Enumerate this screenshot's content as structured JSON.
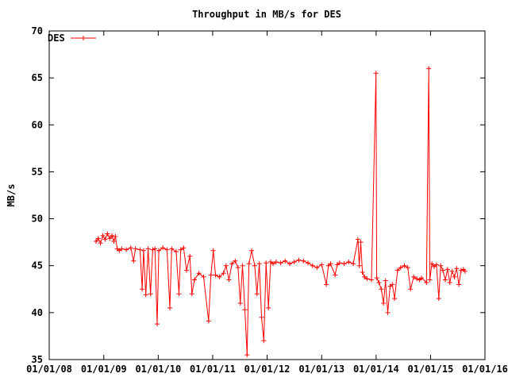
{
  "chart_data": {
    "type": "line",
    "title": "Throughput in MB/s for DES",
    "xlabel": "",
    "ylabel": "MB/s",
    "x_tick_labels": [
      "01/01/08",
      "01/01/09",
      "01/01/10",
      "01/01/11",
      "01/01/12",
      "01/01/13",
      "01/01/14",
      "01/01/15",
      "01/01/16"
    ],
    "y_ticks": [
      35,
      40,
      45,
      50,
      55,
      60,
      65,
      70
    ],
    "xlim": [
      "2008-01-01",
      "2016-01-01"
    ],
    "ylim": [
      35,
      70
    ],
    "grid": false,
    "legend_position": "top-left",
    "colors": {
      "series": "#ff0000",
      "axes": "#000000",
      "background": "#ffffff"
    },
    "series": [
      {
        "name": "DES",
        "marker": "plus",
        "points": [
          [
            "2008-11-10",
            47.6
          ],
          [
            "2008-11-25",
            47.9
          ],
          [
            "2008-12-10",
            47.4
          ],
          [
            "2008-12-25",
            48.2
          ],
          [
            "2009-01-10",
            47.8
          ],
          [
            "2009-01-25",
            48.4
          ],
          [
            "2009-02-10",
            47.9
          ],
          [
            "2009-02-25",
            48.2
          ],
          [
            "2009-03-10",
            47.6
          ],
          [
            "2009-03-20",
            48.1
          ],
          [
            "2009-04-01",
            46.8
          ],
          [
            "2009-04-15",
            46.6
          ],
          [
            "2009-05-01",
            46.8
          ],
          [
            "2009-06-01",
            46.7
          ],
          [
            "2009-07-01",
            46.9
          ],
          [
            "2009-07-20",
            45.5
          ],
          [
            "2009-08-01",
            46.8
          ],
          [
            "2009-09-01",
            46.7
          ],
          [
            "2009-09-15",
            42.5
          ],
          [
            "2009-09-25",
            46.6
          ],
          [
            "2009-10-10",
            41.9
          ],
          [
            "2009-10-25",
            46.8
          ],
          [
            "2009-11-10",
            42.0
          ],
          [
            "2009-11-25",
            46.7
          ],
          [
            "2009-12-10",
            46.8
          ],
          [
            "2009-12-25",
            38.8
          ],
          [
            "2010-01-05",
            46.6
          ],
          [
            "2010-02-01",
            46.9
          ],
          [
            "2010-03-01",
            46.7
          ],
          [
            "2010-03-20",
            40.5
          ],
          [
            "2010-04-01",
            46.8
          ],
          [
            "2010-05-01",
            46.5
          ],
          [
            "2010-05-20",
            42.0
          ],
          [
            "2010-06-01",
            46.7
          ],
          [
            "2010-06-20",
            46.9
          ],
          [
            "2010-07-10",
            44.5
          ],
          [
            "2010-08-01",
            46.0
          ],
          [
            "2010-08-15",
            42.0
          ],
          [
            "2010-09-01",
            43.5
          ],
          [
            "2010-10-01",
            44.2
          ],
          [
            "2010-11-01",
            43.8
          ],
          [
            "2010-12-05",
            39.1
          ],
          [
            "2010-12-20",
            44.0
          ],
          [
            "2011-01-05",
            46.6
          ],
          [
            "2011-01-20",
            44.0
          ],
          [
            "2011-02-15",
            43.8
          ],
          [
            "2011-03-15",
            44.2
          ],
          [
            "2011-04-01",
            45.0
          ],
          [
            "2011-04-20",
            43.5
          ],
          [
            "2011-05-10",
            45.2
          ],
          [
            "2011-06-01",
            45.5
          ],
          [
            "2011-06-20",
            44.8
          ],
          [
            "2011-07-05",
            41.0
          ],
          [
            "2011-07-20",
            45.0
          ],
          [
            "2011-08-05",
            40.3
          ],
          [
            "2011-08-20",
            35.5
          ],
          [
            "2011-09-01",
            45.2
          ],
          [
            "2011-09-20",
            46.6
          ],
          [
            "2011-10-10",
            45.0
          ],
          [
            "2011-10-25",
            42.0
          ],
          [
            "2011-11-10",
            45.2
          ],
          [
            "2011-11-25",
            39.5
          ],
          [
            "2011-12-10",
            37.0
          ],
          [
            "2011-12-25",
            45.3
          ],
          [
            "2012-01-10",
            40.5
          ],
          [
            "2012-01-25",
            45.4
          ],
          [
            "2012-02-10",
            45.2
          ],
          [
            "2012-03-01",
            45.4
          ],
          [
            "2012-04-01",
            45.3
          ],
          [
            "2012-05-01",
            45.5
          ],
          [
            "2012-06-01",
            45.2
          ],
          [
            "2012-07-01",
            45.4
          ],
          [
            "2012-08-01",
            45.6
          ],
          [
            "2012-09-01",
            45.5
          ],
          [
            "2012-10-01",
            45.3
          ],
          [
            "2012-11-01",
            45.0
          ],
          [
            "2012-12-01",
            44.8
          ],
          [
            "2013-01-01",
            45.1
          ],
          [
            "2013-02-01",
            43.0
          ],
          [
            "2013-02-15",
            45.0
          ],
          [
            "2013-03-01",
            45.2
          ],
          [
            "2013-04-01",
            44.0
          ],
          [
            "2013-04-15",
            45.1
          ],
          [
            "2013-05-01",
            45.3
          ],
          [
            "2013-06-01",
            45.2
          ],
          [
            "2013-07-01",
            45.4
          ],
          [
            "2013-08-01",
            45.2
          ],
          [
            "2013-09-01",
            47.8
          ],
          [
            "2013-09-10",
            45.0
          ],
          [
            "2013-09-20",
            47.5
          ],
          [
            "2013-10-01",
            44.3
          ],
          [
            "2013-10-15",
            43.8
          ],
          [
            "2013-11-01",
            43.6
          ],
          [
            "2013-12-01",
            43.5
          ],
          [
            "2013-12-31",
            65.5
          ],
          [
            "2014-01-05",
            43.7
          ],
          [
            "2014-01-20",
            43.2
          ],
          [
            "2014-02-05",
            42.5
          ],
          [
            "2014-02-20",
            41.0
          ],
          [
            "2014-03-05",
            43.4
          ],
          [
            "2014-03-20",
            40.0
          ],
          [
            "2014-04-05",
            42.8
          ],
          [
            "2014-04-20",
            43.0
          ],
          [
            "2014-05-05",
            41.5
          ],
          [
            "2014-05-25",
            44.5
          ],
          [
            "2014-06-15",
            44.8
          ],
          [
            "2014-07-10",
            45.0
          ],
          [
            "2014-08-01",
            44.8
          ],
          [
            "2014-08-20",
            42.5
          ],
          [
            "2014-09-10",
            43.8
          ],
          [
            "2014-10-01",
            43.6
          ],
          [
            "2014-10-20",
            43.5
          ],
          [
            "2014-11-01",
            43.7
          ],
          [
            "2014-12-05",
            43.2
          ],
          [
            "2014-12-20",
            66.0
          ],
          [
            "2014-12-27",
            43.5
          ],
          [
            "2015-01-10",
            45.2
          ],
          [
            "2015-01-25",
            44.9
          ],
          [
            "2015-02-10",
            45.1
          ],
          [
            "2015-02-25",
            41.5
          ],
          [
            "2015-03-10",
            45.0
          ],
          [
            "2015-03-25",
            44.5
          ],
          [
            "2015-04-10",
            43.5
          ],
          [
            "2015-04-25",
            44.6
          ],
          [
            "2015-05-10",
            43.2
          ],
          [
            "2015-05-25",
            44.4
          ],
          [
            "2015-06-10",
            43.8
          ],
          [
            "2015-06-25",
            44.7
          ],
          [
            "2015-07-10",
            43.0
          ],
          [
            "2015-07-25",
            44.5
          ],
          [
            "2015-08-10",
            44.6
          ],
          [
            "2015-08-20",
            44.4
          ]
        ]
      }
    ]
  }
}
